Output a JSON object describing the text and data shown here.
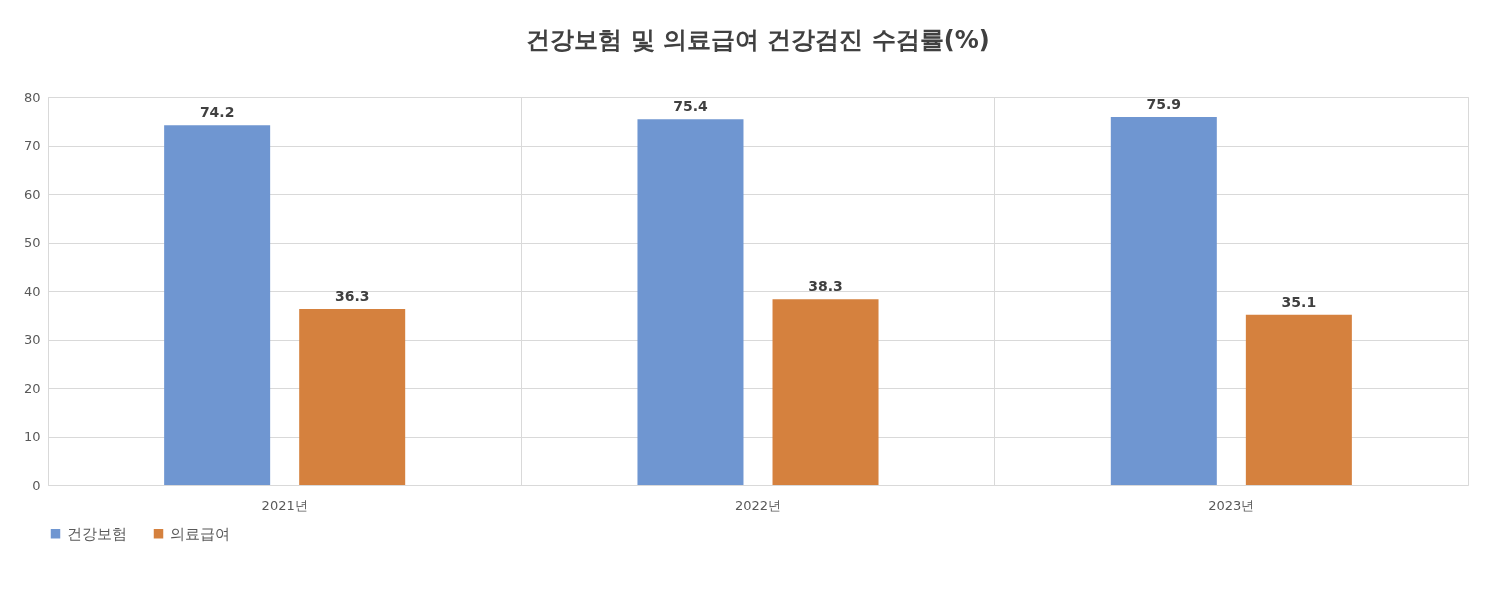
{
  "chart_data": {
    "type": "bar",
    "title": "건강보험 및 의료급여 건강검진 수검률(%)",
    "categories": [
      "2021년",
      "2022년",
      "2023년"
    ],
    "series": [
      {
        "name": "건강보험",
        "color": "#6f96d1",
        "values": [
          74.2,
          75.4,
          75.9
        ]
      },
      {
        "name": "의료급여",
        "color": "#d5813e",
        "values": [
          36.3,
          38.3,
          35.1
        ]
      }
    ],
    "ylim": [
      0,
      80
    ],
    "yticks": [
      0,
      10,
      20,
      30,
      40,
      50,
      60,
      70,
      80
    ],
    "grid": true,
    "legend": "bottom",
    "data_labels": true
  }
}
